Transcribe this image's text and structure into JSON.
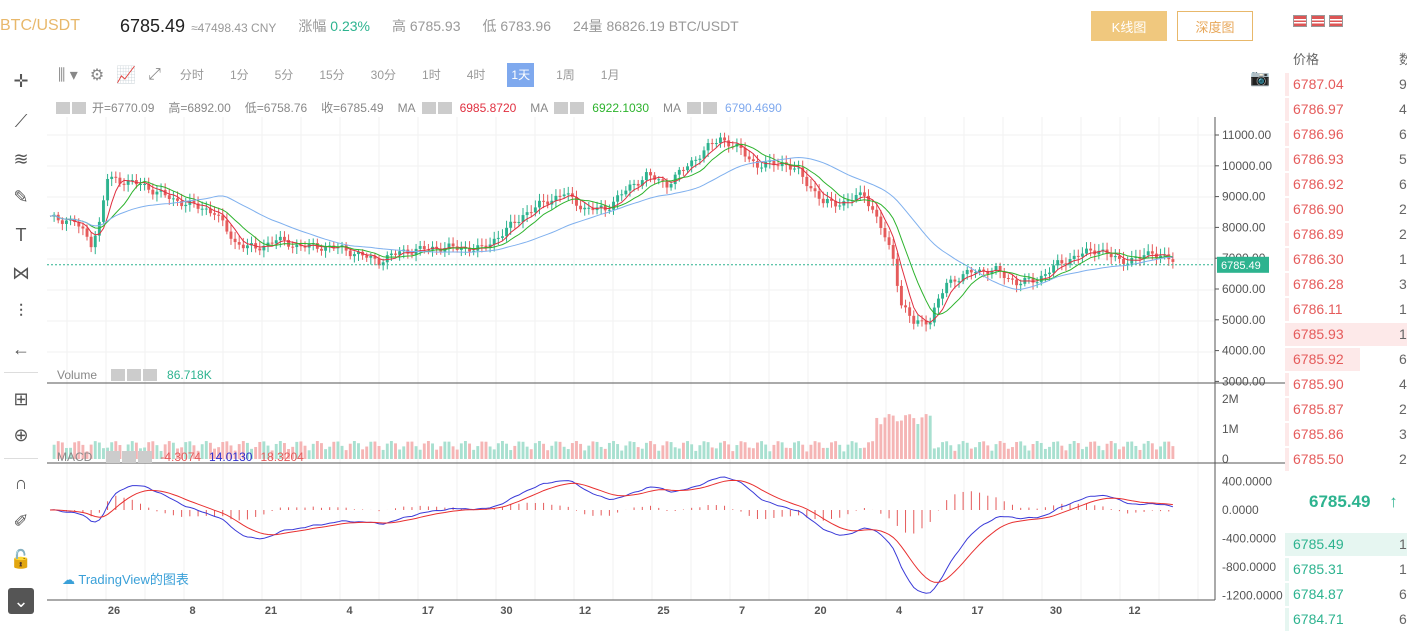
{
  "header": {
    "pair": "BTC/USDT",
    "price": "6785.49",
    "cny": "≈47498.43 CNY",
    "change_label": "涨幅",
    "change_value": "0.23%",
    "high_label": "高",
    "high_value": "6785.93",
    "low_label": "低",
    "low_value": "6783.96",
    "vol_label": "24量",
    "vol_value": "86826.19 BTC/USDT",
    "kline_btn": "K线图",
    "depth_btn": "深度图"
  },
  "toolbar": {
    "intervals": [
      "分时",
      "1分",
      "5分",
      "15分",
      "30分",
      "1时",
      "4时",
      "1天",
      "1周",
      "1月"
    ],
    "active": "1天"
  },
  "legend": {
    "open": "开=6770.09",
    "high": "高=6892.00",
    "low": "低=6758.76",
    "close": "收=6785.49",
    "ma": "MA",
    "ma1": "6985.8720",
    "ma2": "6922.1030",
    "ma3": "6790.4690",
    "volume_label": "Volume",
    "volume_value": "86.718K",
    "macd_label": "MACD",
    "macd1": "-4.3074",
    "macd2": "14.0130",
    "macd3": "18.3204"
  },
  "price_axis": [
    "11000.00",
    "10000.00",
    "9000.00",
    "8000.00",
    "7000.00",
    "6000.00",
    "5000.00",
    "4000.00",
    "3000.00"
  ],
  "price_tag": "6785.49",
  "volume_axis": [
    "2M",
    "1M",
    "0"
  ],
  "macd_axis": [
    "400.0000",
    "0.0000",
    "-400.0000",
    "-800.0000",
    "-1200.0000"
  ],
  "date_axis": [
    "26",
    "8",
    "21",
    "4",
    "17",
    "30",
    "12",
    "25",
    "7",
    "20",
    "4",
    "17",
    "30",
    "12"
  ],
  "watermark": "TradingView的图表",
  "orderbook": {
    "price_header": "价格",
    "amount_header": "数",
    "asks": [
      {
        "price": "6787.04",
        "amt": "9"
      },
      {
        "price": "6786.97",
        "amt": "4"
      },
      {
        "price": "6786.96",
        "amt": "6"
      },
      {
        "price": "6786.93",
        "amt": "5"
      },
      {
        "price": "6786.92",
        "amt": "6"
      },
      {
        "price": "6786.90",
        "amt": "2"
      },
      {
        "price": "6786.89",
        "amt": "2"
      },
      {
        "price": "6786.30",
        "amt": "1"
      },
      {
        "price": "6786.28",
        "amt": "3"
      },
      {
        "price": "6786.11",
        "amt": "1"
      },
      {
        "price": "6785.93",
        "amt": "1"
      },
      {
        "price": "6785.92",
        "amt": "6"
      },
      {
        "price": "6785.90",
        "amt": "4"
      },
      {
        "price": "6785.87",
        "amt": "2"
      },
      {
        "price": "6785.86",
        "amt": "3"
      },
      {
        "price": "6785.50",
        "amt": "2"
      }
    ],
    "mid_price": "6785.49",
    "mid_arrow": "↑",
    "bids": [
      {
        "price": "6785.49",
        "amt": "1"
      },
      {
        "price": "6785.31",
        "amt": "1"
      },
      {
        "price": "6784.87",
        "amt": "6"
      },
      {
        "price": "6784.71",
        "amt": "6"
      }
    ]
  },
  "colors": {
    "up": "#2db38f",
    "down": "#e55b5b",
    "accent": "#f0c87e",
    "ma1": "#e03040",
    "ma2": "#2db32d",
    "ma3": "#7fb0ee"
  }
}
